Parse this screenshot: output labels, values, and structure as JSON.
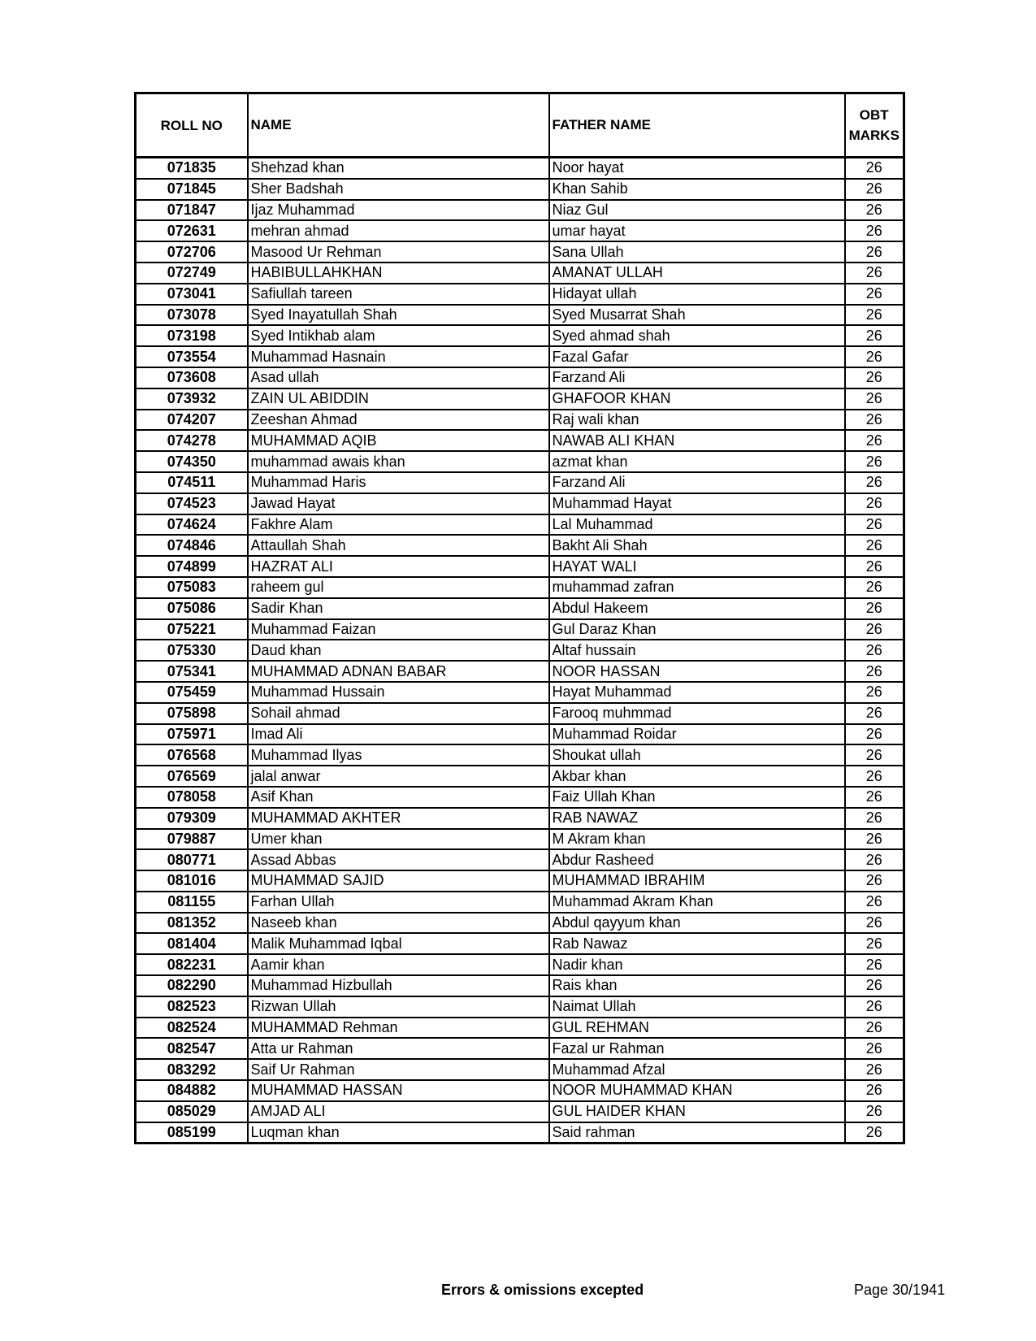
{
  "table": {
    "headers": {
      "roll_no": "ROLL NO",
      "name": "NAME",
      "father_name": "FATHER NAME",
      "obt_marks_line1": "OBT",
      "obt_marks_line2": "MARKS"
    },
    "rows": [
      [
        "071835",
        "Shehzad khan",
        "Noor hayat",
        "26"
      ],
      [
        "071845",
        "Sher Badshah",
        "Khan Sahib",
        "26"
      ],
      [
        "071847",
        "Ijaz Muhammad",
        "Niaz Gul",
        "26"
      ],
      [
        "072631",
        "mehran ahmad",
        "umar hayat",
        "26"
      ],
      [
        "072706",
        "Masood Ur Rehman",
        "Sana Ullah",
        "26"
      ],
      [
        "072749",
        "HABIBULLAHKHAN",
        "AMANAT ULLAH",
        "26"
      ],
      [
        "073041",
        "Safiullah tareen",
        "Hidayat ullah",
        "26"
      ],
      [
        "073078",
        "Syed Inayatullah Shah",
        "Syed Musarrat Shah",
        "26"
      ],
      [
        "073198",
        "Syed Intikhab alam",
        "Syed ahmad shah",
        "26"
      ],
      [
        "073554",
        "Muhammad Hasnain",
        "Fazal Gafar",
        "26"
      ],
      [
        "073608",
        "Asad ullah",
        "Farzand Ali",
        "26"
      ],
      [
        "073932",
        "ZAIN UL ABIDDIN",
        "GHAFOOR KHAN",
        "26"
      ],
      [
        "074207",
        "Zeeshan Ahmad",
        "Raj wali khan",
        "26"
      ],
      [
        "074278",
        "MUHAMMAD AQIB",
        "NAWAB ALI KHAN",
        "26"
      ],
      [
        "074350",
        "muhammad awais khan",
        "azmat khan",
        "26"
      ],
      [
        "074511",
        "Muhammad Haris",
        "Farzand Ali",
        "26"
      ],
      [
        "074523",
        "Jawad Hayat",
        "Muhammad Hayat",
        "26"
      ],
      [
        "074624",
        "Fakhre Alam",
        "Lal Muhammad",
        "26"
      ],
      [
        "074846",
        "Attaullah Shah",
        "Bakht Ali Shah",
        "26"
      ],
      [
        "074899",
        "HAZRAT ALI",
        "HAYAT WALI",
        "26"
      ],
      [
        "075083",
        "raheem gul",
        "muhammad zafran",
        "26"
      ],
      [
        "075086",
        "Sadir Khan",
        "Abdul Hakeem",
        "26"
      ],
      [
        "075221",
        "Muhammad Faizan",
        "Gul Daraz Khan",
        "26"
      ],
      [
        "075330",
        "Daud khan",
        "Altaf hussain",
        "26"
      ],
      [
        "075341",
        "MUHAMMAD ADNAN BABAR",
        "NOOR HASSAN",
        "26"
      ],
      [
        "075459",
        "Muhammad Hussain",
        "Hayat Muhammad",
        "26"
      ],
      [
        "075898",
        "Sohail ahmad",
        "Farooq muhmmad",
        "26"
      ],
      [
        "075971",
        "Imad Ali",
        "Muhammad Roidar",
        "26"
      ],
      [
        "076568",
        "Muhammad Ilyas",
        "Shoukat ullah",
        "26"
      ],
      [
        "076569",
        "jalal anwar",
        "Akbar khan",
        "26"
      ],
      [
        "078058",
        "Asif Khan",
        "Faiz Ullah Khan",
        "26"
      ],
      [
        "079309",
        "MUHAMMAD AKHTER",
        "RAB NAWAZ",
        "26"
      ],
      [
        "079887",
        "Umer khan",
        "M Akram khan",
        "26"
      ],
      [
        "080771",
        "Assad Abbas",
        "Abdur Rasheed",
        "26"
      ],
      [
        "081016",
        "MUHAMMAD SAJID",
        "MUHAMMAD IBRAHIM",
        "26"
      ],
      [
        "081155",
        "Farhan Ullah",
        "Muhammad Akram Khan",
        "26"
      ],
      [
        "081352",
        "Naseeb khan",
        "Abdul qayyum khan",
        "26"
      ],
      [
        "081404",
        "Malik Muhammad Iqbal",
        "Rab Nawaz",
        "26"
      ],
      [
        "082231",
        "Aamir khan",
        "Nadir khan",
        "26"
      ],
      [
        "082290",
        "Muhammad Hizbullah",
        "Rais khan",
        "26"
      ],
      [
        "082523",
        "Rizwan Ullah",
        "Naimat Ullah",
        "26"
      ],
      [
        "082524",
        "MUHAMMAD Rehman",
        "GUL REHMAN",
        "26"
      ],
      [
        "082547",
        "Atta ur Rahman",
        "Fazal ur Rahman",
        "26"
      ],
      [
        "083292",
        "Saif Ur Rahman",
        "Muhammad Afzal",
        "26"
      ],
      [
        "084882",
        "MUHAMMAD HASSAN",
        "NOOR MUHAMMAD KHAN",
        "26"
      ],
      [
        "085029",
        "AMJAD ALI",
        "GUL HAIDER KHAN",
        "26"
      ],
      [
        "085199",
        "Luqman khan",
        "Said rahman",
        "26"
      ]
    ]
  },
  "footer": {
    "note": "Errors & omissions excepted",
    "page": "Page 30/1941"
  }
}
